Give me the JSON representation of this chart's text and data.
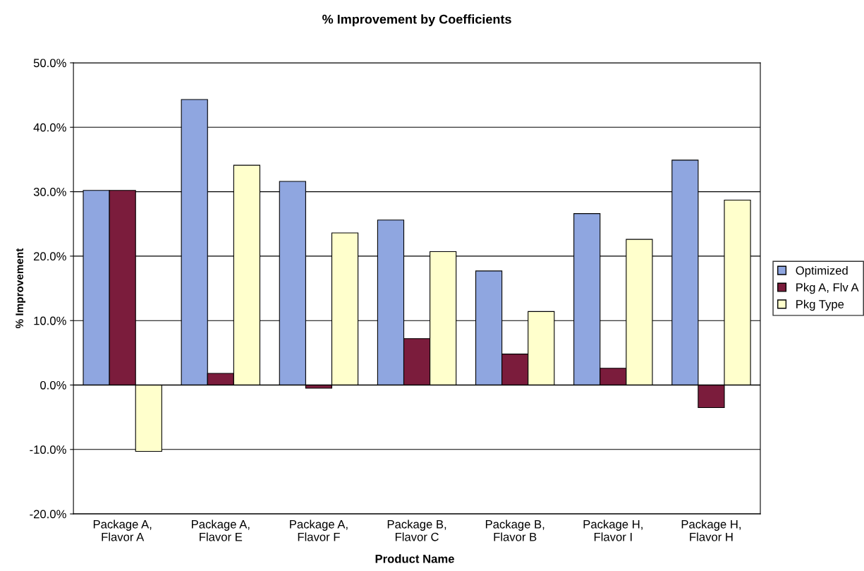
{
  "chart_data": {
    "type": "bar",
    "title": "% Improvement by Coefficients",
    "xlabel": "Product Name",
    "ylabel": "% Improvement",
    "categories": [
      "Package A,\nFlavor A",
      "Package A,\nFlavor E",
      "Package A,\nFlavor F",
      "Package B,\nFlavor C",
      "Package B,\nFlavor B",
      "Package H,\nFlavor I",
      "Package H,\nFlavor H"
    ],
    "series": [
      {
        "name": "Optimized",
        "color": "#8fa6e0",
        "values": [
          30.2,
          44.3,
          31.6,
          25.6,
          17.7,
          26.6,
          34.9
        ]
      },
      {
        "name": "Pkg A, Flv A",
        "color": "#7b1c3c",
        "values": [
          30.2,
          1.8,
          -0.5,
          7.2,
          4.8,
          2.6,
          -3.5
        ]
      },
      {
        "name": "Pkg Type",
        "color": "#ffffcc",
        "values": [
          -10.3,
          34.1,
          23.6,
          20.7,
          11.4,
          22.6,
          28.7
        ]
      }
    ],
    "ylim": [
      -20,
      50
    ],
    "yticks": [
      {
        "value": -20,
        "label": "-20.0%"
      },
      {
        "value": -10,
        "label": "-10.0%"
      },
      {
        "value": 0,
        "label": "0.0%"
      },
      {
        "value": 10,
        "label": "10.0%"
      },
      {
        "value": 20,
        "label": "20.0%"
      },
      {
        "value": 30,
        "label": "30.0%"
      },
      {
        "value": 40,
        "label": "40.0%"
      },
      {
        "value": 50,
        "label": "50.0%"
      }
    ],
    "grid": "y",
    "legend": "right"
  }
}
